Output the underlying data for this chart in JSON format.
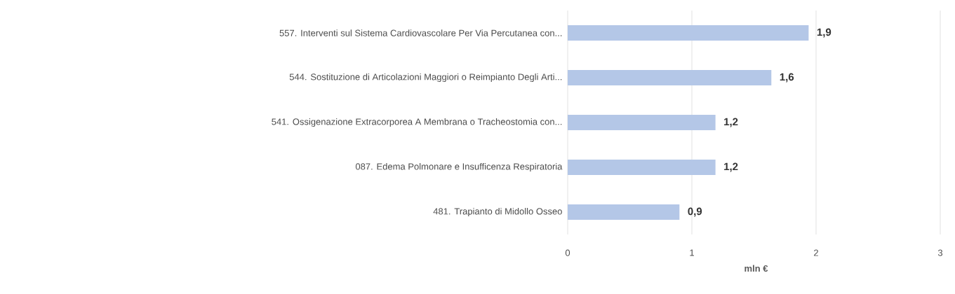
{
  "chart_data": {
    "type": "bar",
    "orientation": "horizontal",
    "xlabel": "mln €",
    "categories": [
      "557. Interventi sul Sistema Cardiovascolare Per Via Percutanea con...",
      "544. Sostituzione di Articolazioni Maggiori o Reimpianto Degli Arti...",
      "541. Ossigenazione Extracorporea A Membrana o Tracheostomia con...",
      "087. Edema Polmonare e Insufficenza Respiratoria",
      "481. Trapianto di Midollo Osseo"
    ],
    "values": [
      1.94,
      1.64,
      1.19,
      1.19,
      0.9
    ],
    "value_labels": [
      "1,9",
      "1,6",
      "1,2",
      "1,2",
      "0,9"
    ],
    "color": "#b4c7e7",
    "xlim": [
      0,
      3
    ],
    "xticks": [
      0,
      1,
      2,
      3
    ],
    "grid": "x"
  }
}
